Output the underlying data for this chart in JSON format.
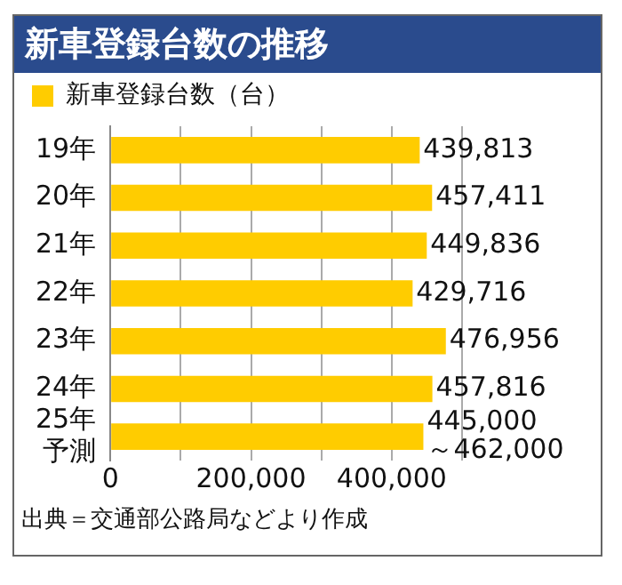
{
  "chart_data": {
    "type": "bar",
    "orientation": "horizontal",
    "title": "新車登録台数の推移",
    "categories": [
      "19年",
      "20年",
      "21年",
      "22年",
      "23年",
      "24年",
      "25年予測"
    ],
    "series": [
      {
        "name": "新車登録台数（台）",
        "color": "#ffcc00",
        "values": [
          439813,
          457411,
          449836,
          429716,
          476956,
          457816,
          445000
        ],
        "value_labels": [
          "439,813",
          "457,411",
          "449,836",
          "429,716",
          "476,956",
          "457,816",
          "445,000\n～462,000"
        ]
      }
    ],
    "xlim": [
      0,
      500000
    ],
    "xticks": [
      0,
      {
        "value": 100000,
        "label": null
      },
      {
        "value": 200000,
        "label": "200,000"
      },
      {
        "value": 300000,
        "label": null
      },
      {
        "value": 400000,
        "label": "400,000"
      },
      {
        "value": 500000,
        "label": null
      }
    ],
    "grid": "x",
    "legend": "top left",
    "annotations": [
      "出典＝交通部公路局などより作成"
    ]
  }
}
